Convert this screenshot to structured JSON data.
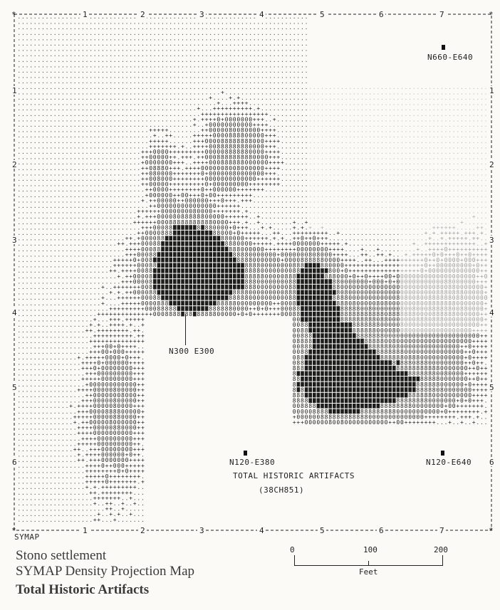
{
  "frame": {
    "column_labels_top": [
      "1",
      "2",
      "3",
      "4",
      "5",
      "6",
      "7"
    ],
    "column_labels_bottom": [
      "1",
      "2",
      "3",
      "4",
      "5",
      "6",
      "7"
    ],
    "row_labels": [
      "1",
      "2",
      "3",
      "4",
      "5",
      "6"
    ],
    "corner_symbol": "*",
    "program_label": "SYMAP"
  },
  "density_symbols": {
    "lowest": ".",
    "low": "+",
    "medium": "0",
    "high": "8",
    "highest": "█"
  },
  "points": {
    "top_right": "N660-E640",
    "center_left": "N300 E300",
    "bottom_center": "N120-E380",
    "bottom_right": "N120-E640"
  },
  "map_title": "TOTAL HISTORIC ARTIFACTS",
  "site_number": "(38CH851)",
  "caption": {
    "line1": "Stono settlement",
    "line2": "SYMAP Density Projection Map",
    "line3": "Total Historic Artifacts"
  },
  "scale_bar": {
    "ticks": [
      "0",
      "100",
      "200"
    ],
    "unit": "Feet"
  },
  "colors": {
    "ink": "#1e1e1e",
    "paper": "#fbfaf7"
  }
}
